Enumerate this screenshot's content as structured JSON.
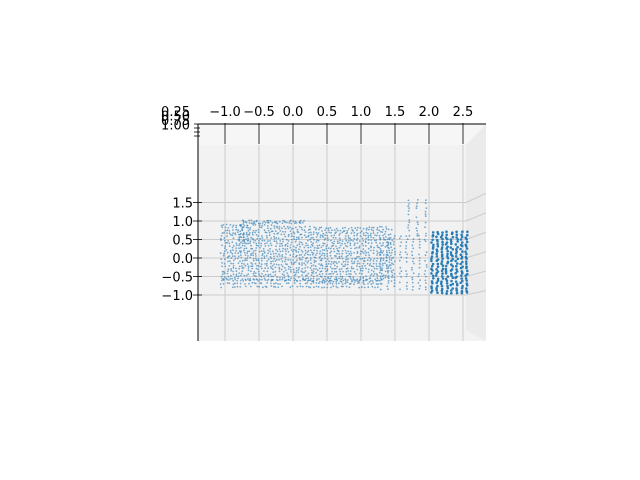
{
  "chart_data": {
    "type": "scatter",
    "projection": "3d",
    "title": "",
    "xlabel": "",
    "ylabel": "",
    "zlabel": "",
    "grid": true,
    "legend": "none",
    "colors": {
      "points": "#1f77b4",
      "pane": "#f2f2f2",
      "grid": "#cccccc"
    },
    "x_ticks": [
      "−1.0",
      "−0.5",
      "0.0",
      "0.5",
      "1.0",
      "1.5",
      "2.0",
      "2.5"
    ],
    "y_ticks": [
      "1.5",
      "1.0",
      "0.5",
      "0.0",
      "−0.5",
      "−1.0"
    ],
    "depth_ticks": [
      "0.25",
      "0.50",
      "0.75",
      "1.00"
    ],
    "xlim": [
      -1.1,
      2.75
    ],
    "ylim": [
      -1.15,
      1.65
    ],
    "regions": [
      {
        "name": "upper-left shelf",
        "x": [
          -0.75,
          0.15
        ],
        "y": [
          0.95,
          1.0
        ],
        "rows": 2,
        "cols": 28
      },
      {
        "name": "vertical post",
        "x": [
          -0.78,
          -0.68
        ],
        "y": [
          0.4,
          0.9
        ],
        "rows": 10,
        "cols": 3
      },
      {
        "name": "main wall",
        "x": [
          -1.05,
          1.45
        ],
        "y": [
          -0.6,
          0.85
        ],
        "rows": 22,
        "cols": 60
      },
      {
        "name": "floor edge",
        "x": [
          -1.05,
          1.3
        ],
        "y": [
          -0.78,
          -0.6
        ],
        "rows": 3,
        "cols": 60
      },
      {
        "name": "right structure",
        "x": [
          1.3,
          1.95
        ],
        "y": [
          -0.85,
          0.6
        ],
        "rows": 18,
        "cols": 8
      },
      {
        "name": "right pillar",
        "x": [
          1.7,
          1.95
        ],
        "y": [
          0.6,
          1.55
        ],
        "rows": 14,
        "cols": 3
      },
      {
        "name": "dense right cluster",
        "x": [
          2.05,
          2.55
        ],
        "y": [
          -0.95,
          0.7
        ],
        "rows": 26,
        "cols": 8
      }
    ]
  }
}
